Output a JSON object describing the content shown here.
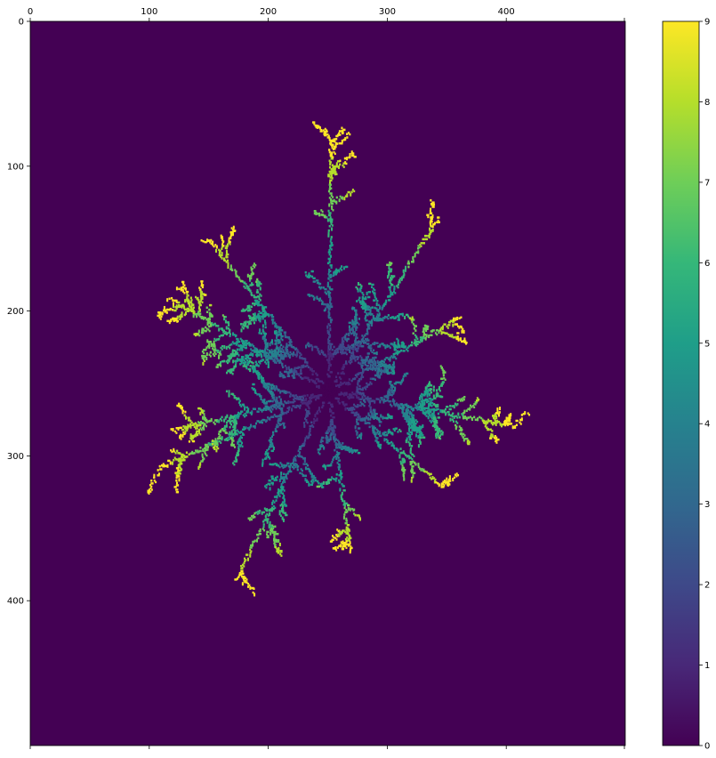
{
  "chart_data": {
    "type": "heatmap",
    "title": "",
    "xlabel": "",
    "ylabel": "",
    "x_ticks": [
      0,
      100,
      200,
      300,
      400
    ],
    "x_tick_labels": [
      "0",
      "100",
      "200",
      "300",
      "400"
    ],
    "x_minor_ticks": [
      500
    ],
    "y_ticks": [
      0,
      100,
      200,
      300,
      400
    ],
    "y_tick_labels": [
      "0",
      "100",
      "200",
      "300",
      "400"
    ],
    "x_range": [
      0,
      500
    ],
    "y_range": [
      0,
      500
    ],
    "x_axis_position": "top",
    "y_axis_inverted": true,
    "grid": false,
    "colormap": "viridis",
    "background_value": 0,
    "colorbar": {
      "min": 0,
      "max": 9,
      "ticks": [
        0,
        1,
        2,
        3,
        4,
        5,
        6,
        7,
        8,
        9
      ],
      "tick_labels": [
        "0",
        "1",
        "2",
        "3",
        "4",
        "5",
        "6",
        "7",
        "8",
        "9"
      ],
      "position": "right",
      "colors": [
        "#440154",
        "#482878",
        "#3e4989",
        "#31688e",
        "#26828e",
        "#1f9e89",
        "#35b779",
        "#6ece58",
        "#b5de2b",
        "#fde725"
      ]
    },
    "cluster": {
      "description_center": [
        250,
        255
      ],
      "arm_tips": [
        {
          "x": 252,
          "y": 82,
          "value": 9
        },
        {
          "x": 342,
          "y": 135,
          "value": 9
        },
        {
          "x": 361,
          "y": 203,
          "value": 9
        },
        {
          "x": 405,
          "y": 278,
          "value": 9
        },
        {
          "x": 346,
          "y": 320,
          "value": 9
        },
        {
          "x": 268,
          "y": 365,
          "value": 9
        },
        {
          "x": 172,
          "y": 385,
          "value": 9
        },
        {
          "x": 110,
          "y": 306,
          "value": 9
        },
        {
          "x": 118,
          "y": 282,
          "value": 9
        },
        {
          "x": 115,
          "y": 190,
          "value": 9
        },
        {
          "x": 150,
          "y": 150,
          "value": 9
        }
      ]
    }
  }
}
